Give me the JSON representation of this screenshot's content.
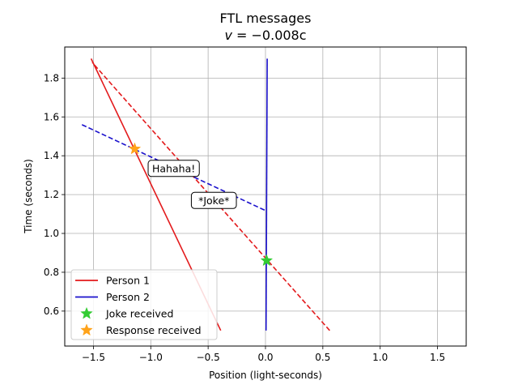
{
  "chart_data": {
    "type": "line",
    "title": "FTL messages",
    "subtitle": "v = −0.008c",
    "subtitle_prefix": "v",
    "subtitle_value": " = −0.008c",
    "xlabel": "Position (light-seconds)",
    "ylabel": "Time (seconds)",
    "xlim": [
      -1.75,
      1.75
    ],
    "ylim": [
      0.42,
      1.96
    ],
    "xticks": [
      -1.5,
      -1.0,
      -0.5,
      0.0,
      0.5,
      1.0,
      1.5
    ],
    "xtick_labels": [
      "−1.5",
      "−1.0",
      "−0.5",
      "0.0",
      "0.5",
      "1.0",
      "1.5"
    ],
    "yticks": [
      0.6,
      0.8,
      1.0,
      1.2,
      1.4,
      1.6,
      1.8
    ],
    "ytick_labels": [
      "0.6",
      "0.8",
      "1.0",
      "1.2",
      "1.4",
      "1.6",
      "1.8"
    ],
    "grid": true,
    "series": [
      {
        "name": "Person 1",
        "color": "#e31a1c",
        "style": "solid",
        "x": [
          -0.39,
          -1.52
        ],
        "y": [
          0.5,
          1.9
        ]
      },
      {
        "name": "Person 2",
        "color": "#1a10cc",
        "style": "solid",
        "x": [
          0.005,
          0.015
        ],
        "y": [
          0.5,
          1.9
        ]
      },
      {
        "name": "Joke signal",
        "color": "#e31a1c",
        "style": "dashed",
        "legend": false,
        "x": [
          0.56,
          -1.51
        ],
        "y": [
          0.5,
          1.88
        ]
      },
      {
        "name": "Response signal",
        "color": "#1a10cc",
        "style": "dashed",
        "legend": false,
        "x": [
          -1.6,
          0.01
        ],
        "y": [
          1.56,
          1.115
        ]
      }
    ],
    "markers": [
      {
        "name": "Joke received",
        "color": "#33cc33",
        "shape": "star",
        "x": 0.01,
        "y": 0.86
      },
      {
        "name": "Response received",
        "color": "#ffa31a",
        "shape": "star",
        "x": -1.14,
        "y": 1.435
      }
    ],
    "annotations": [
      {
        "text": "Hahaha!",
        "x": -0.8,
        "y": 1.335
      },
      {
        "text": "*Joke*",
        "x": -0.45,
        "y": 1.17
      }
    ],
    "legend": {
      "placement": "lower-left",
      "entries": [
        "Person 1",
        "Person 2",
        "Joke received",
        "Response received"
      ]
    }
  }
}
